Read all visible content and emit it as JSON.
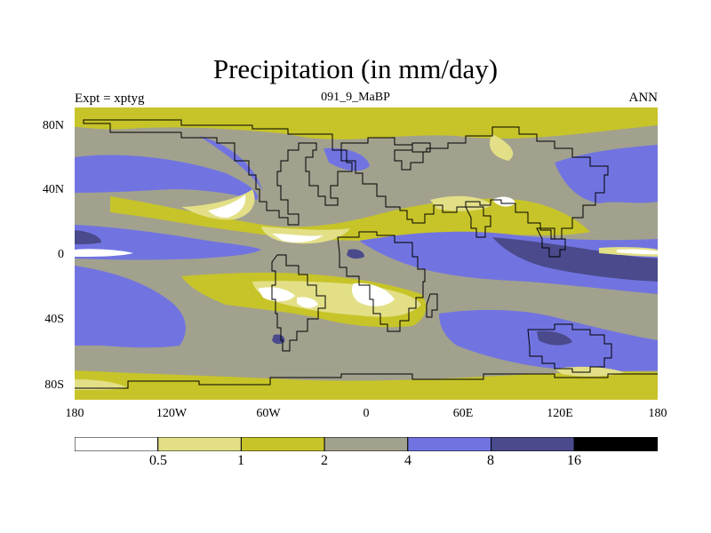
{
  "title": "Precipitation (in mm/day)",
  "subtitle_left": "Expt = xptyg",
  "subtitle_center": "091_9_MaBP",
  "subtitle_right": "ANN",
  "colors": {
    "level0": "#ffffff",
    "level1": "#e2df87",
    "level2": "#c7c429",
    "level3": "#a2a18e",
    "level4": "#7174e0",
    "level5": "#4a4a8c",
    "level6": "#000000"
  },
  "lat_ticks": [
    "80N",
    "40N",
    "0",
    "40S",
    "80S"
  ],
  "lon_ticks": [
    "180",
    "120W",
    "60W",
    "0",
    "60E",
    "120E",
    "180"
  ],
  "colorbar": {
    "levels": [
      "0.5",
      "1",
      "2",
      "4",
      "8",
      "16"
    ]
  }
}
